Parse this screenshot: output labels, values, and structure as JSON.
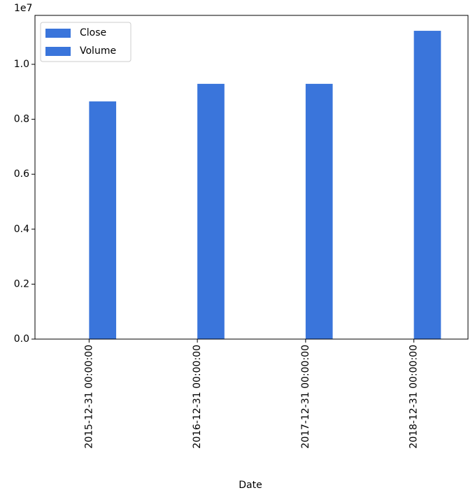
{
  "chart_data": {
    "type": "bar",
    "x_label": "Date",
    "offset_text": "1e7",
    "categories": [
      "2015-12-31 00:00:00",
      "2016-12-31 00:00:00",
      "2017-12-31 00:00:00",
      "2018-12-31 00:00:00"
    ],
    "series": [
      {
        "name": "Close",
        "color": "#3a75db",
        "values": [
          0,
          0,
          0,
          0
        ]
      },
      {
        "name": "Volume",
        "color": "#3a75db",
        "values": [
          8650000,
          9290000,
          9290000,
          11220000
        ]
      }
    ],
    "ylim": [
      0,
      11781000
    ],
    "yticks": [
      {
        "value": 0,
        "label": "0.0"
      },
      {
        "value": 2000000,
        "label": "0.2"
      },
      {
        "value": 4000000,
        "label": "0.4"
      },
      {
        "value": 6000000,
        "label": "0.6"
      },
      {
        "value": 8000000,
        "label": "0.8"
      },
      {
        "value": 10000000,
        "label": "1.0"
      }
    ],
    "grid": false,
    "legend": "upper left"
  }
}
